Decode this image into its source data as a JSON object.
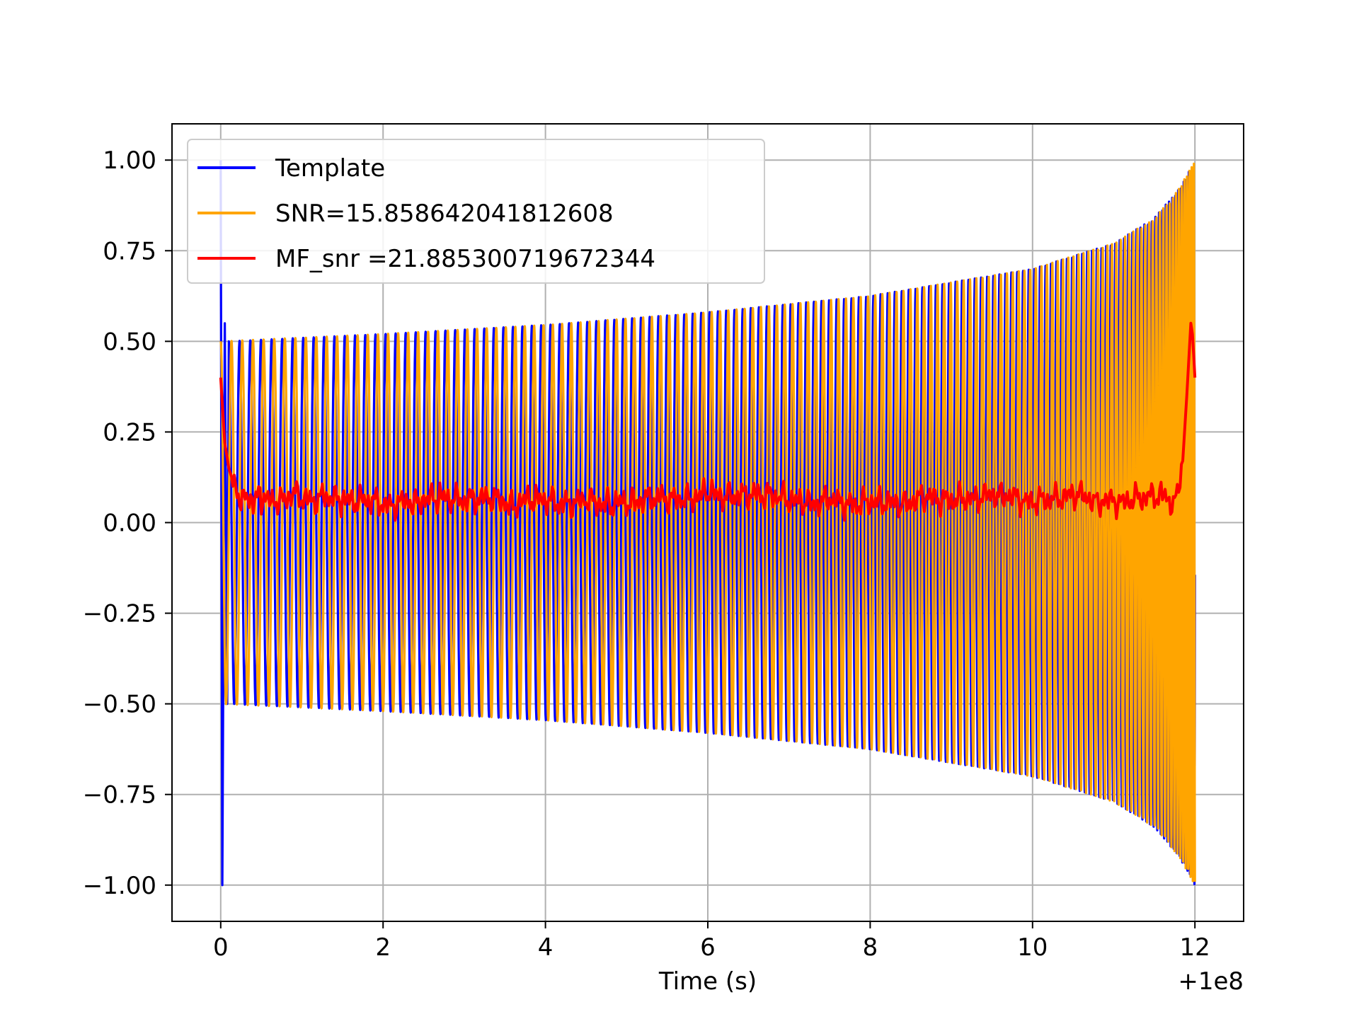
{
  "chart_data": {
    "type": "line",
    "title": "",
    "xlabel": "Time (s)",
    "ylabel": "",
    "x_offset_label": "+1e8",
    "xlim": [
      -0.6,
      12.6
    ],
    "ylim": [
      -1.1,
      1.1
    ],
    "grid": true,
    "legend_position": "top-left",
    "x_ticks": [
      0,
      2,
      4,
      6,
      8,
      10,
      12
    ],
    "x_tick_labels": [
      "0",
      "2",
      "4",
      "6",
      "8",
      "10",
      "12"
    ],
    "y_ticks": [
      1.0,
      0.75,
      0.5,
      0.25,
      0.0,
      -0.25,
      -0.5,
      -0.75,
      -1.0
    ],
    "y_tick_labels": [
      "1.00",
      "0.75",
      "0.50",
      "0.25",
      "0.00",
      "−0.25",
      "−0.50",
      "−0.75",
      "−1.00"
    ],
    "series": [
      {
        "name": "Template",
        "color": "#0000ff",
        "kind": "chirp",
        "envelope": {
          "x": [
            0.1,
            2,
            4,
            6,
            8,
            10,
            11,
            11.5,
            11.8,
            12.0
          ],
          "amp": [
            0.5,
            0.52,
            0.545,
            0.58,
            0.625,
            0.7,
            0.77,
            0.84,
            0.92,
            1.0
          ]
        },
        "spike": {
          "x": [
            0.0,
            0.02,
            0.05,
            0.08
          ],
          "y": [
            1.0,
            -1.0,
            0.55,
            -0.5
          ]
        }
      },
      {
        "name": "SNR=15.858642041812608",
        "color": "#ffa500",
        "kind": "chirp",
        "envelope": {
          "x": [
            0.0,
            2,
            4,
            6,
            8,
            10,
            11,
            11.5,
            11.8,
            12.0
          ],
          "amp": [
            0.5,
            0.52,
            0.545,
            0.58,
            0.625,
            0.7,
            0.77,
            0.84,
            0.92,
            1.0
          ]
        }
      },
      {
        "name": "MF_snr =21.885300719672344",
        "color": "#ff0000",
        "kind": "noisy",
        "x": [
          0.0,
          0.05,
          0.1,
          0.2,
          0.3,
          0.4,
          0.5,
          0.7,
          0.9,
          1.1,
          1.3,
          1.5,
          1.8,
          2.1,
          2.4,
          2.7,
          3.0,
          3.3,
          3.6,
          3.9,
          4.2,
          4.5,
          4.8,
          5.1,
          5.4,
          5.7,
          6.0,
          6.3,
          6.6,
          6.9,
          7.2,
          7.5,
          7.8,
          8.1,
          8.4,
          8.7,
          9.0,
          9.3,
          9.6,
          9.9,
          10.2,
          10.5,
          10.8,
          11.1,
          11.4,
          11.6,
          11.75,
          11.85,
          11.9,
          11.95,
          11.97,
          12.0
        ],
        "y": [
          0.4,
          0.22,
          0.15,
          0.08,
          0.07,
          0.06,
          0.07,
          0.05,
          0.08,
          0.06,
          0.07,
          0.06,
          0.06,
          0.05,
          0.06,
          0.07,
          0.06,
          0.07,
          0.05,
          0.07,
          0.05,
          0.06,
          0.05,
          0.06,
          0.07,
          0.06,
          0.08,
          0.07,
          0.08,
          0.07,
          0.05,
          0.06,
          0.05,
          0.06,
          0.05,
          0.07,
          0.06,
          0.07,
          0.08,
          0.06,
          0.06,
          0.08,
          0.06,
          0.06,
          0.07,
          0.08,
          0.05,
          0.17,
          0.35,
          0.55,
          0.52,
          0.4
        ]
      }
    ]
  }
}
